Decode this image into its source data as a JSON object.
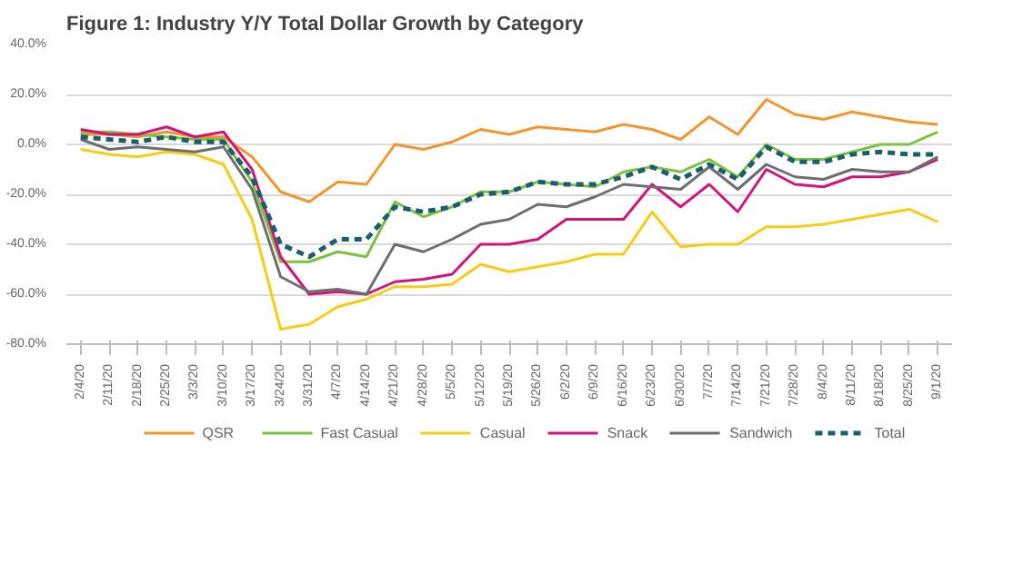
{
  "chart_data": {
    "type": "line",
    "title": "Figure 1: Industry Y/Y Total Dollar Growth by Category",
    "categories": [
      "2/4/20",
      "2/11/20",
      "2/18/20",
      "2/25/20",
      "3/3/20",
      "3/10/20",
      "3/17/20",
      "3/24/20",
      "3/31/20",
      "4/7/20",
      "4/14/20",
      "4/21/20",
      "4/28/20",
      "5/5/20",
      "5/12/20",
      "5/19/20",
      "5/26/20",
      "6/2/20",
      "6/9/20",
      "6/16/20",
      "6/23/20",
      "6/30/20",
      "7/7/20",
      "7/14/20",
      "7/21/20",
      "7/28/20",
      "8/4/20",
      "8/11/20",
      "8/18/20",
      "8/25/20",
      "9/1/20"
    ],
    "series": [
      {
        "name": "QSR",
        "color": "#f0962e",
        "line_style": "solid",
        "values": [
          4,
          4,
          3,
          5,
          3,
          3,
          -5,
          -19,
          -23,
          -15,
          -16,
          0,
          -2,
          1,
          6,
          4,
          7,
          6,
          5,
          8,
          6,
          2,
          11,
          4,
          18,
          12,
          10,
          13,
          11,
          9,
          8
        ]
      },
      {
        "name": "Fast Casual",
        "color": "#7cc142",
        "line_style": "solid",
        "values": [
          5,
          5,
          4,
          3,
          2,
          2,
          -15,
          -47,
          -47,
          -43,
          -45,
          -23,
          -29,
          -25,
          -19,
          -19,
          -15,
          -16,
          -17,
          -11,
          -9,
          -11,
          -6,
          -13,
          0,
          -6,
          -6,
          -3,
          0,
          0,
          5
        ]
      },
      {
        "name": "Casual",
        "color": "#f5cc16",
        "line_style": "solid",
        "values": [
          -2,
          -4,
          -5,
          -3,
          -4,
          -8,
          -30,
          -74,
          -72,
          -65,
          -62,
          -57,
          -57,
          -56,
          -48,
          -51,
          -49,
          -47,
          -44,
          -44,
          -27,
          -41,
          -40,
          -40,
          -33,
          -33,
          -32,
          -30,
          -28,
          -26,
          -31
        ]
      },
      {
        "name": "Snack",
        "color": "#d0157a",
        "line_style": "solid",
        "values": [
          6,
          4,
          4,
          7,
          3,
          5,
          -10,
          -45,
          -60,
          -59,
          -60,
          -55,
          -54,
          -52,
          -40,
          -40,
          -38,
          -30,
          -30,
          -30,
          -16,
          -25,
          -16,
          -27,
          -10,
          -16,
          -17,
          -13,
          -13,
          -11,
          -6
        ]
      },
      {
        "name": "Sandwich",
        "color": "#6d6e71",
        "line_style": "solid",
        "values": [
          2,
          -2,
          -1,
          -2,
          -3,
          -1,
          -18,
          -53,
          -59,
          -58,
          -60,
          -40,
          -43,
          -38,
          -32,
          -30,
          -24,
          -25,
          -21,
          -16,
          -17,
          -18,
          -9,
          -18,
          -8,
          -13,
          -14,
          -10,
          -11,
          -11,
          -5
        ]
      },
      {
        "name": "Total",
        "color": "#1b5e6e",
        "line_style": "dashed",
        "values": [
          3,
          2,
          1,
          3,
          1,
          1,
          -13,
          -40,
          -45,
          -38,
          -38,
          -25,
          -27,
          -25,
          -20,
          -19,
          -15,
          -16,
          -16,
          -13,
          -9,
          -14,
          -8,
          -14,
          -1,
          -7,
          -7,
          -4,
          -3,
          -4,
          -4
        ]
      }
    ],
    "ylim": [
      -80,
      40
    ],
    "yticks": [
      {
        "value": -80,
        "label": "-80.0%"
      },
      {
        "value": -60,
        "label": "-60.0%"
      },
      {
        "value": -40,
        "label": "-40.0%"
      },
      {
        "value": -20,
        "label": "-20.0%"
      },
      {
        "value": 0,
        "label": "0.0%"
      },
      {
        "value": 20,
        "label": "20.0%"
      },
      {
        "value": 40,
        "label": "40.0%"
      }
    ],
    "grid": "y",
    "legend": "bottom"
  }
}
